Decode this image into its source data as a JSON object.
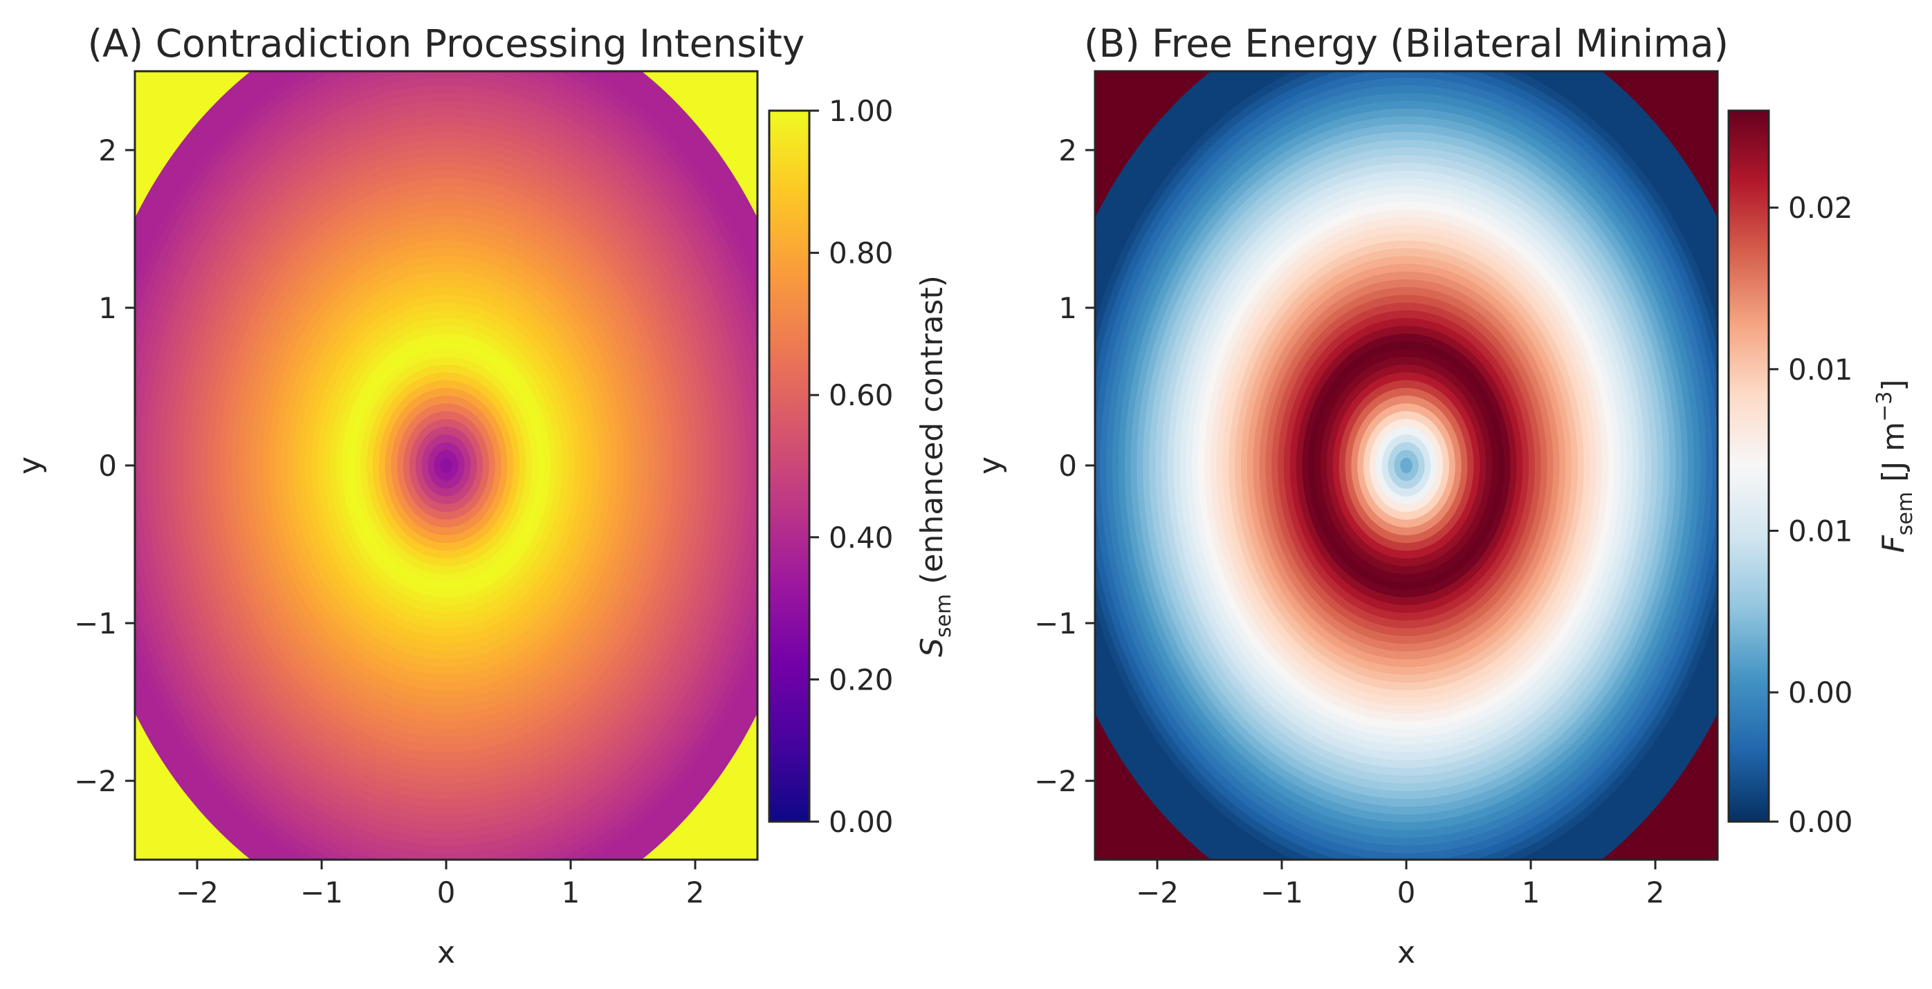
{
  "chart_data": [
    {
      "type": "heatmap",
      "title": "(A) Contradiction Processing Intensity",
      "xlabel": "x",
      "ylabel": "y",
      "xlim": [
        -2.5,
        2.5
      ],
      "ylim": [
        -2.5,
        2.5
      ],
      "xticks": [
        "−2",
        "−1",
        "0",
        "1",
        "2"
      ],
      "xtick_values": [
        -2,
        -1,
        0,
        1,
        2
      ],
      "yticks": [
        "−2",
        "−1",
        "0",
        "1",
        "2"
      ],
      "ytick_values": [
        -2,
        -1,
        0,
        1,
        2
      ],
      "colormap": "plasma",
      "field": "ring: low at origin, peak ≈1.0 on an elliptical ring of radius ≈1, decaying outward",
      "colorbar": {
        "label_symbol": "S",
        "label_subscript": "sem",
        "label_rest": " (enhanced contrast)",
        "ticks": [
          "0.00",
          "0.20",
          "0.40",
          "0.60",
          "0.80",
          "1.00"
        ],
        "tick_values": [
          0,
          0.2,
          0.4,
          0.6,
          0.8,
          1.0
        ],
        "range": [
          0,
          1
        ]
      }
    },
    {
      "type": "heatmap",
      "title": "(B) Free Energy (Bilateral Minima)",
      "xlabel": "x",
      "ylabel": "y",
      "xlim": [
        -2.5,
        2.5
      ],
      "ylim": [
        -2.5,
        2.5
      ],
      "xticks": [
        "−2",
        "−1",
        "0",
        "1",
        "2"
      ],
      "xtick_values": [
        -2,
        -1,
        0,
        1,
        2
      ],
      "yticks": [
        "−2",
        "−1",
        "0",
        "1",
        "2"
      ],
      "ytick_values": [
        -2,
        -1,
        0,
        1,
        2
      ],
      "colormap": "RdBu_r",
      "field": "ring: minimum at origin, maximum on an elliptical ring of radius ≈1, decaying outward below zero",
      "colorbar": {
        "label_symbol": "F",
        "label_subscript": "sem",
        "label_rest": " [J m",
        "label_superscript": "−3",
        "label_close": "]",
        "ticks": [
          "0.00",
          "0.00",
          "0.01",
          "0.01",
          "0.02"
        ],
        "tick_values": [
          -0.004,
          0.0,
          0.005,
          0.01,
          0.015
        ],
        "range": [
          -0.004,
          0.018
        ]
      }
    }
  ],
  "colors": {
    "plasma": [
      "#0d0887",
      "#47039f",
      "#7301a8",
      "#9c179e",
      "#bd3786",
      "#d8576b",
      "#ed7953",
      "#fa9e3b",
      "#fdc926",
      "#f0f921"
    ],
    "rdbu": [
      "#053061",
      "#2166ac",
      "#4393c3",
      "#92c5de",
      "#d1e5f0",
      "#f7f7f7",
      "#fddbc7",
      "#f4a582",
      "#d6604d",
      "#b2182b",
      "#67001f"
    ],
    "text": "#262626",
    "spine": "#262626"
  }
}
